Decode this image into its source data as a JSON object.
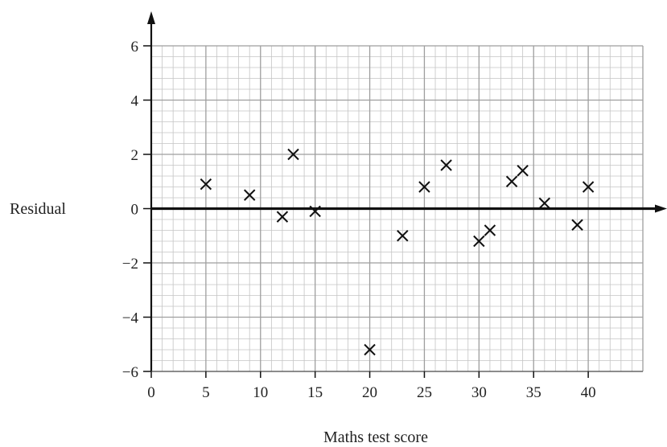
{
  "chart_data": {
    "type": "scatter",
    "xlabel": "Maths test score",
    "ylabel": "Residual",
    "xlim": [
      0,
      45
    ],
    "ylim": [
      -6,
      6
    ],
    "x_ticks": [
      0,
      5,
      10,
      15,
      20,
      25,
      30,
      35,
      40
    ],
    "y_ticks": [
      6,
      4,
      2,
      0,
      -2,
      -4,
      -6
    ],
    "x_tick_labels": [
      "0",
      "5",
      "10",
      "15",
      "20",
      "25",
      "30",
      "35",
      "40"
    ],
    "y_tick_labels": [
      "6",
      "4",
      "2",
      "0",
      "−2",
      "−4",
      "−6"
    ],
    "grid": true,
    "marker": "x",
    "points": [
      {
        "x": 5,
        "y": 0.9
      },
      {
        "x": 9,
        "y": 0.5
      },
      {
        "x": 12,
        "y": -0.3
      },
      {
        "x": 13,
        "y": 2.0
      },
      {
        "x": 15,
        "y": -0.1
      },
      {
        "x": 20,
        "y": -5.2
      },
      {
        "x": 23,
        "y": -1.0
      },
      {
        "x": 25,
        "y": 0.8
      },
      {
        "x": 27,
        "y": 1.6
      },
      {
        "x": 30,
        "y": -1.2
      },
      {
        "x": 31,
        "y": -0.8
      },
      {
        "x": 33,
        "y": 1.0
      },
      {
        "x": 34,
        "y": 1.4
      },
      {
        "x": 36,
        "y": 0.2
      },
      {
        "x": 39,
        "y": -0.6
      },
      {
        "x": 40,
        "y": 0.8
      }
    ]
  }
}
